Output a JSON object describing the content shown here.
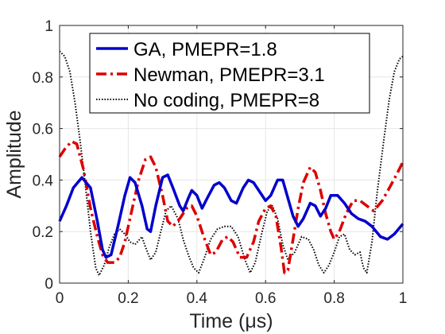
{
  "chart_data": {
    "type": "line",
    "xlabel": "Time (μs)",
    "ylabel": "Amplitude",
    "xlim": [
      0,
      1
    ],
    "ylim": [
      0,
      1
    ],
    "xticks": [
      "0",
      "0.2",
      "0.4",
      "0.6",
      "0.8",
      "1"
    ],
    "yticks": [
      "0",
      "0.2",
      "0.4",
      "0.6",
      "0.8",
      "1"
    ],
    "grid": true,
    "legend_position": "top-center",
    "series": [
      {
        "name": "GA, PMEPR=1.8",
        "color": "#0000cc",
        "style": "solid",
        "points": [
          [
            0,
            0.24
          ],
          [
            0.02,
            0.3
          ],
          [
            0.04,
            0.37
          ],
          [
            0.065,
            0.41
          ],
          [
            0.09,
            0.37
          ],
          [
            0.11,
            0.24
          ],
          [
            0.125,
            0.13
          ],
          [
            0.135,
            0.1
          ],
          [
            0.15,
            0.11
          ],
          [
            0.17,
            0.22
          ],
          [
            0.19,
            0.34
          ],
          [
            0.205,
            0.41
          ],
          [
            0.22,
            0.39
          ],
          [
            0.24,
            0.3
          ],
          [
            0.255,
            0.21
          ],
          [
            0.265,
            0.2
          ],
          [
            0.28,
            0.3
          ],
          [
            0.3,
            0.41
          ],
          [
            0.315,
            0.42
          ],
          [
            0.33,
            0.37
          ],
          [
            0.35,
            0.3
          ],
          [
            0.36,
            0.28
          ],
          [
            0.375,
            0.33
          ],
          [
            0.385,
            0.36
          ],
          [
            0.4,
            0.34
          ],
          [
            0.415,
            0.29
          ],
          [
            0.43,
            0.33
          ],
          [
            0.45,
            0.38
          ],
          [
            0.465,
            0.39
          ],
          [
            0.48,
            0.37
          ],
          [
            0.5,
            0.32
          ],
          [
            0.515,
            0.31
          ],
          [
            0.535,
            0.37
          ],
          [
            0.55,
            0.4
          ],
          [
            0.565,
            0.39
          ],
          [
            0.58,
            0.36
          ],
          [
            0.6,
            0.32
          ],
          [
            0.615,
            0.34
          ],
          [
            0.635,
            0.4
          ],
          [
            0.65,
            0.4
          ],
          [
            0.665,
            0.33
          ],
          [
            0.68,
            0.26
          ],
          [
            0.695,
            0.22
          ],
          [
            0.71,
            0.25
          ],
          [
            0.73,
            0.31
          ],
          [
            0.745,
            0.3
          ],
          [
            0.76,
            0.26
          ],
          [
            0.775,
            0.29
          ],
          [
            0.79,
            0.34
          ],
          [
            0.81,
            0.34
          ],
          [
            0.83,
            0.31
          ],
          [
            0.85,
            0.27
          ],
          [
            0.87,
            0.25
          ],
          [
            0.89,
            0.24
          ],
          [
            0.91,
            0.22
          ],
          [
            0.935,
            0.18
          ],
          [
            0.955,
            0.17
          ],
          [
            0.975,
            0.19
          ],
          [
            1.0,
            0.23
          ]
        ]
      },
      {
        "name": "Newman, PMEPR=3.1",
        "color": "#dd0000",
        "style": "dashdot",
        "points": [
          [
            0,
            0.49
          ],
          [
            0.015,
            0.52
          ],
          [
            0.035,
            0.55
          ],
          [
            0.05,
            0.54
          ],
          [
            0.07,
            0.44
          ],
          [
            0.09,
            0.29
          ],
          [
            0.11,
            0.18
          ],
          [
            0.125,
            0.11
          ],
          [
            0.14,
            0.08
          ],
          [
            0.16,
            0.08
          ],
          [
            0.175,
            0.1
          ],
          [
            0.19,
            0.16
          ],
          [
            0.21,
            0.28
          ],
          [
            0.23,
            0.4
          ],
          [
            0.25,
            0.48
          ],
          [
            0.265,
            0.49
          ],
          [
            0.28,
            0.45
          ],
          [
            0.3,
            0.34
          ],
          [
            0.315,
            0.24
          ],
          [
            0.33,
            0.22
          ],
          [
            0.35,
            0.25
          ],
          [
            0.37,
            0.29
          ],
          [
            0.385,
            0.3
          ],
          [
            0.4,
            0.26
          ],
          [
            0.42,
            0.18
          ],
          [
            0.44,
            0.11
          ],
          [
            0.455,
            0.12
          ],
          [
            0.475,
            0.17
          ],
          [
            0.49,
            0.18
          ],
          [
            0.505,
            0.16
          ],
          [
            0.525,
            0.1
          ],
          [
            0.545,
            0.1
          ],
          [
            0.565,
            0.16
          ],
          [
            0.58,
            0.24
          ],
          [
            0.6,
            0.29
          ],
          [
            0.615,
            0.3
          ],
          [
            0.63,
            0.26
          ],
          [
            0.645,
            0.14
          ],
          [
            0.655,
            0.04
          ],
          [
            0.665,
            0.05
          ],
          [
            0.68,
            0.17
          ],
          [
            0.695,
            0.29
          ],
          [
            0.71,
            0.39
          ],
          [
            0.73,
            0.45
          ],
          [
            0.745,
            0.43
          ],
          [
            0.76,
            0.36
          ],
          [
            0.775,
            0.27
          ],
          [
            0.79,
            0.2
          ],
          [
            0.8,
            0.17
          ],
          [
            0.815,
            0.2
          ],
          [
            0.835,
            0.27
          ],
          [
            0.855,
            0.32
          ],
          [
            0.875,
            0.32
          ],
          [
            0.895,
            0.3
          ],
          [
            0.915,
            0.28
          ],
          [
            0.94,
            0.32
          ],
          [
            0.965,
            0.38
          ],
          [
            0.985,
            0.43
          ],
          [
            1.0,
            0.47
          ]
        ]
      },
      {
        "name": "No coding, PMEPR=8",
        "color": "#000000",
        "style": "dotted",
        "points": [
          [
            0,
            0.9
          ],
          [
            0.015,
            0.88
          ],
          [
            0.03,
            0.82
          ],
          [
            0.045,
            0.7
          ],
          [
            0.06,
            0.55
          ],
          [
            0.075,
            0.38
          ],
          [
            0.09,
            0.2
          ],
          [
            0.105,
            0.06
          ],
          [
            0.115,
            0.03
          ],
          [
            0.13,
            0.07
          ],
          [
            0.145,
            0.14
          ],
          [
            0.16,
            0.19
          ],
          [
            0.175,
            0.21
          ],
          [
            0.19,
            0.19
          ],
          [
            0.205,
            0.16
          ],
          [
            0.22,
            0.15
          ],
          [
            0.24,
            0.18
          ],
          [
            0.25,
            0.14
          ],
          [
            0.265,
            0.09
          ],
          [
            0.28,
            0.12
          ],
          [
            0.295,
            0.2
          ],
          [
            0.31,
            0.28
          ],
          [
            0.325,
            0.3
          ],
          [
            0.345,
            0.25
          ],
          [
            0.36,
            0.17
          ],
          [
            0.375,
            0.11
          ],
          [
            0.39,
            0.06
          ],
          [
            0.405,
            0.04
          ],
          [
            0.42,
            0.09
          ],
          [
            0.44,
            0.17
          ],
          [
            0.46,
            0.21
          ],
          [
            0.48,
            0.22
          ],
          [
            0.5,
            0.22
          ],
          [
            0.52,
            0.18
          ],
          [
            0.54,
            0.09
          ],
          [
            0.555,
            0.04
          ],
          [
            0.57,
            0.08
          ],
          [
            0.59,
            0.2
          ],
          [
            0.605,
            0.28
          ],
          [
            0.62,
            0.3
          ],
          [
            0.635,
            0.25
          ],
          [
            0.65,
            0.15
          ],
          [
            0.665,
            0.09
          ],
          [
            0.685,
            0.12
          ],
          [
            0.705,
            0.18
          ],
          [
            0.725,
            0.17
          ],
          [
            0.74,
            0.13
          ],
          [
            0.755,
            0.07
          ],
          [
            0.77,
            0.04
          ],
          [
            0.785,
            0.07
          ],
          [
            0.8,
            0.12
          ],
          [
            0.815,
            0.18
          ],
          [
            0.83,
            0.19
          ],
          [
            0.845,
            0.13
          ],
          [
            0.86,
            0.11
          ],
          [
            0.875,
            0.12
          ],
          [
            0.885,
            0.06
          ],
          [
            0.895,
            0.04
          ],
          [
            0.91,
            0.16
          ],
          [
            0.925,
            0.35
          ],
          [
            0.945,
            0.56
          ],
          [
            0.96,
            0.71
          ],
          [
            0.975,
            0.82
          ],
          [
            0.99,
            0.87
          ],
          [
            1.0,
            0.88
          ]
        ]
      }
    ]
  }
}
